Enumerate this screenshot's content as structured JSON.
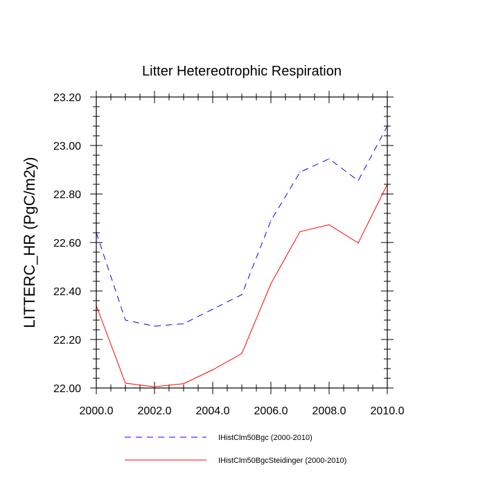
{
  "chart_data": {
    "type": "line",
    "title": "Litter Hetereotrophic Respiration",
    "xlabel": "",
    "ylabel": "LITTERC_HR  (PgC/m2y)",
    "xlim": [
      2000,
      2010
    ],
    "ylim": [
      22.0,
      23.2
    ],
    "x_ticks": [
      2000,
      2002,
      2004,
      2006,
      2008,
      2010
    ],
    "x_tick_labels": [
      "2000.0",
      "2002.0",
      "2004.0",
      "2006.0",
      "2008.0",
      "2010.0"
    ],
    "y_ticks": [
      22.0,
      22.2,
      22.4,
      22.6,
      22.8,
      23.0,
      23.2
    ],
    "y_tick_labels": [
      "22.00",
      "22.20",
      "22.40",
      "22.60",
      "22.80",
      "23.00",
      "23.20"
    ],
    "grid": false,
    "legend_position": "bottom",
    "x": [
      2000,
      2001,
      2002,
      2003,
      2004,
      2005,
      2006,
      2007,
      2008,
      2009,
      2010
    ],
    "series": [
      {
        "name": "IHistClm50Bgc (2000-2010)",
        "color": "#0000ff",
        "style": "dashed",
        "values": [
          22.64,
          22.28,
          22.255,
          22.265,
          22.325,
          22.385,
          22.69,
          22.89,
          22.945,
          22.855,
          23.08
        ]
      },
      {
        "name": "IHistClm50BgcSteidinger (2000-2010)",
        "color": "#ff0000",
        "style": "solid",
        "values": [
          22.34,
          22.02,
          22.005,
          22.018,
          22.075,
          22.142,
          22.43,
          22.645,
          22.673,
          22.598,
          22.84
        ]
      }
    ]
  }
}
